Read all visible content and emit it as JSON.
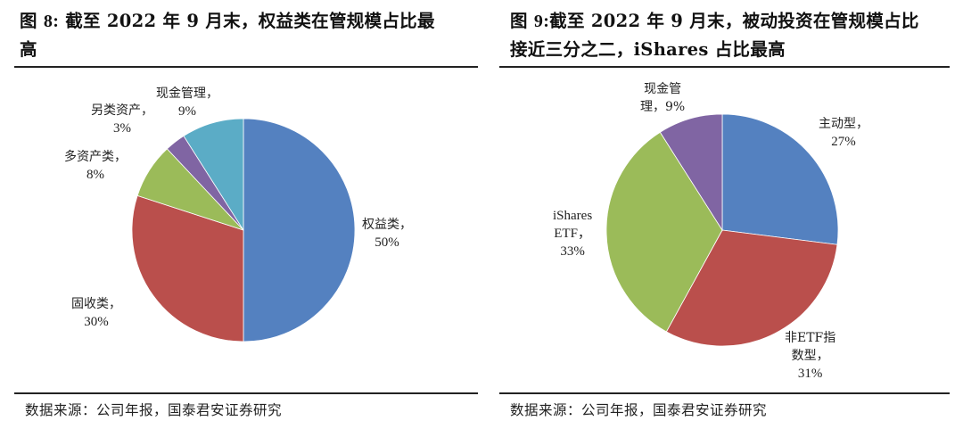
{
  "figures": {
    "left": {
      "title_prefix": "图 ",
      "title_num": "8:",
      "title_line1_rest": " 截至 2022 年 9 月末，权益类在管规模占比最",
      "title_line2": "高",
      "source": "数据来源：公司年报，国泰君安证券研究",
      "labels": [
        {
          "name": "权益类，",
          "pct": "50%"
        },
        {
          "name": "固收类，",
          "pct": "30%"
        },
        {
          "name": "多资产类，",
          "pct": "8%"
        },
        {
          "name": "另类资产，",
          "pct": "3%"
        },
        {
          "name": "现金管理，",
          "pct": "9%"
        }
      ]
    },
    "right": {
      "title_prefix": "图 ",
      "title_num": "9:",
      "title_line1_rest": "截至 2022 年 9 月末，被动投资在管规模占比",
      "title_line2": "接近三分之二，iShares 占比最高",
      "source": "数据来源：公司年报，国泰君安证券研究",
      "labels": [
        {
          "name": "主动型，",
          "pct": "27%"
        },
        {
          "name_l1": "非ETF指",
          "name_l2": "数型，",
          "pct": "31%"
        },
        {
          "name_l1": "iShares",
          "name_l2": "ETF，",
          "pct": "33%"
        },
        {
          "name_l1": "现金管",
          "name_l2": "理，9%"
        }
      ]
    }
  },
  "chart_data": [
    {
      "type": "pie",
      "title": "图 8: 截至 2022 年 9 月末，权益类在管规模占比最高",
      "categories": [
        "权益类",
        "固收类",
        "多资产类",
        "另类资产",
        "现金管理"
      ],
      "values": [
        50,
        30,
        8,
        3,
        9
      ],
      "unit": "%",
      "colors": [
        "#5481C0",
        "#BA4F4C",
        "#9BBB59",
        "#8065A3",
        "#5BACC6"
      ],
      "start_angle": "12 o'clock",
      "direction": "clockwise",
      "legend": "none (data labels beside slices)",
      "source": "数据来源：公司年报，国泰君安证券研究"
    },
    {
      "type": "pie",
      "title": "图 9:截至 2022 年 9 月末，被动投资在管规模占比接近三分之二，iShares 占比最高",
      "categories": [
        "主动型",
        "非ETF指数型",
        "iShares ETF",
        "现金管理"
      ],
      "values": [
        27,
        31,
        33,
        9
      ],
      "unit": "%",
      "colors": [
        "#5481C0",
        "#BA4F4C",
        "#9BBB59",
        "#8065A3"
      ],
      "start_angle": "12 o'clock",
      "direction": "clockwise",
      "legend": "none (data labels beside slices)",
      "source": "数据来源：公司年报，国泰君安证券研究"
    }
  ]
}
